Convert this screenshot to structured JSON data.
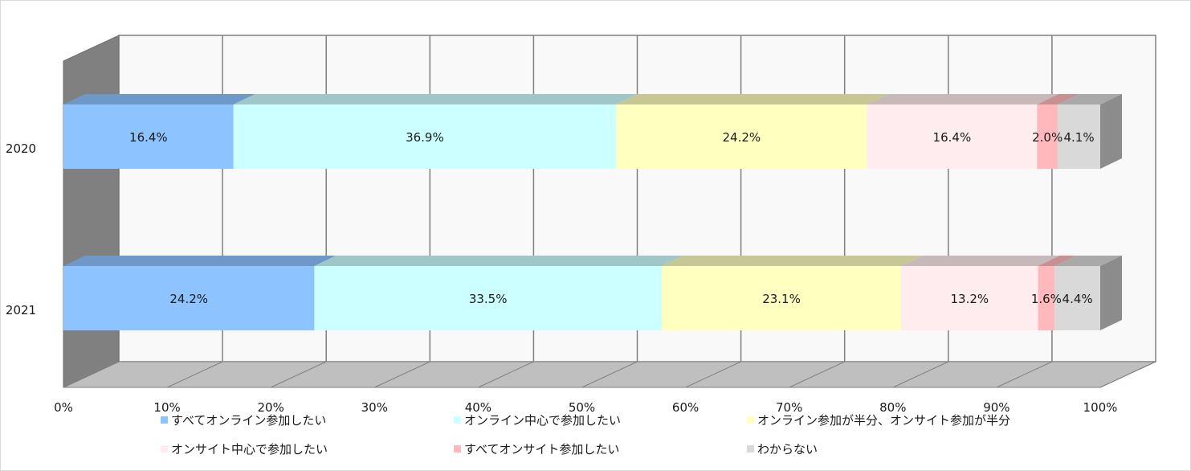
{
  "chart_data": {
    "type": "bar",
    "orientation": "horizontal",
    "stacked": true,
    "percent": true,
    "three_d": true,
    "categories": [
      "2020",
      "2021"
    ],
    "xlim": [
      0,
      100
    ],
    "x_ticks": [
      "0%",
      "10%",
      "20%",
      "30%",
      "40%",
      "50%",
      "60%",
      "70%",
      "80%",
      "90%",
      "100%"
    ],
    "grid": true,
    "legend_position": "bottom",
    "series": [
      {
        "name": "すべてオンライン参加したい",
        "values": [
          16.4,
          24.2
        ],
        "labels": [
          "16.4%",
          "24.2%"
        ],
        "color": "#8dc3ff"
      },
      {
        "name": "オンライン中心で参加したい",
        "values": [
          36.9,
          33.5
        ],
        "labels": [
          "36.9%",
          "33.5%"
        ],
        "color": "#ccffff"
      },
      {
        "name": "オンライン参加が半分、オンサイト参加が半分",
        "values": [
          24.2,
          23.1
        ],
        "labels": [
          "24.2%",
          "23.1%"
        ],
        "color": "#ffffc0"
      },
      {
        "name": "オンサイト中心で参加したい",
        "values": [
          16.4,
          13.2
        ],
        "labels": [
          "16.4%",
          "13.2%"
        ],
        "color": "#ffecee"
      },
      {
        "name": "すべてオンサイト参加したい",
        "values": [
          2.0,
          1.6
        ],
        "labels": [
          "2.0%",
          "1.6%"
        ],
        "color": "#ffb9bd"
      },
      {
        "name": "わからない",
        "values": [
          4.1,
          4.4
        ],
        "labels": [
          "4.1%",
          "4.4%"
        ],
        "color": "#d9d9d9"
      }
    ]
  }
}
